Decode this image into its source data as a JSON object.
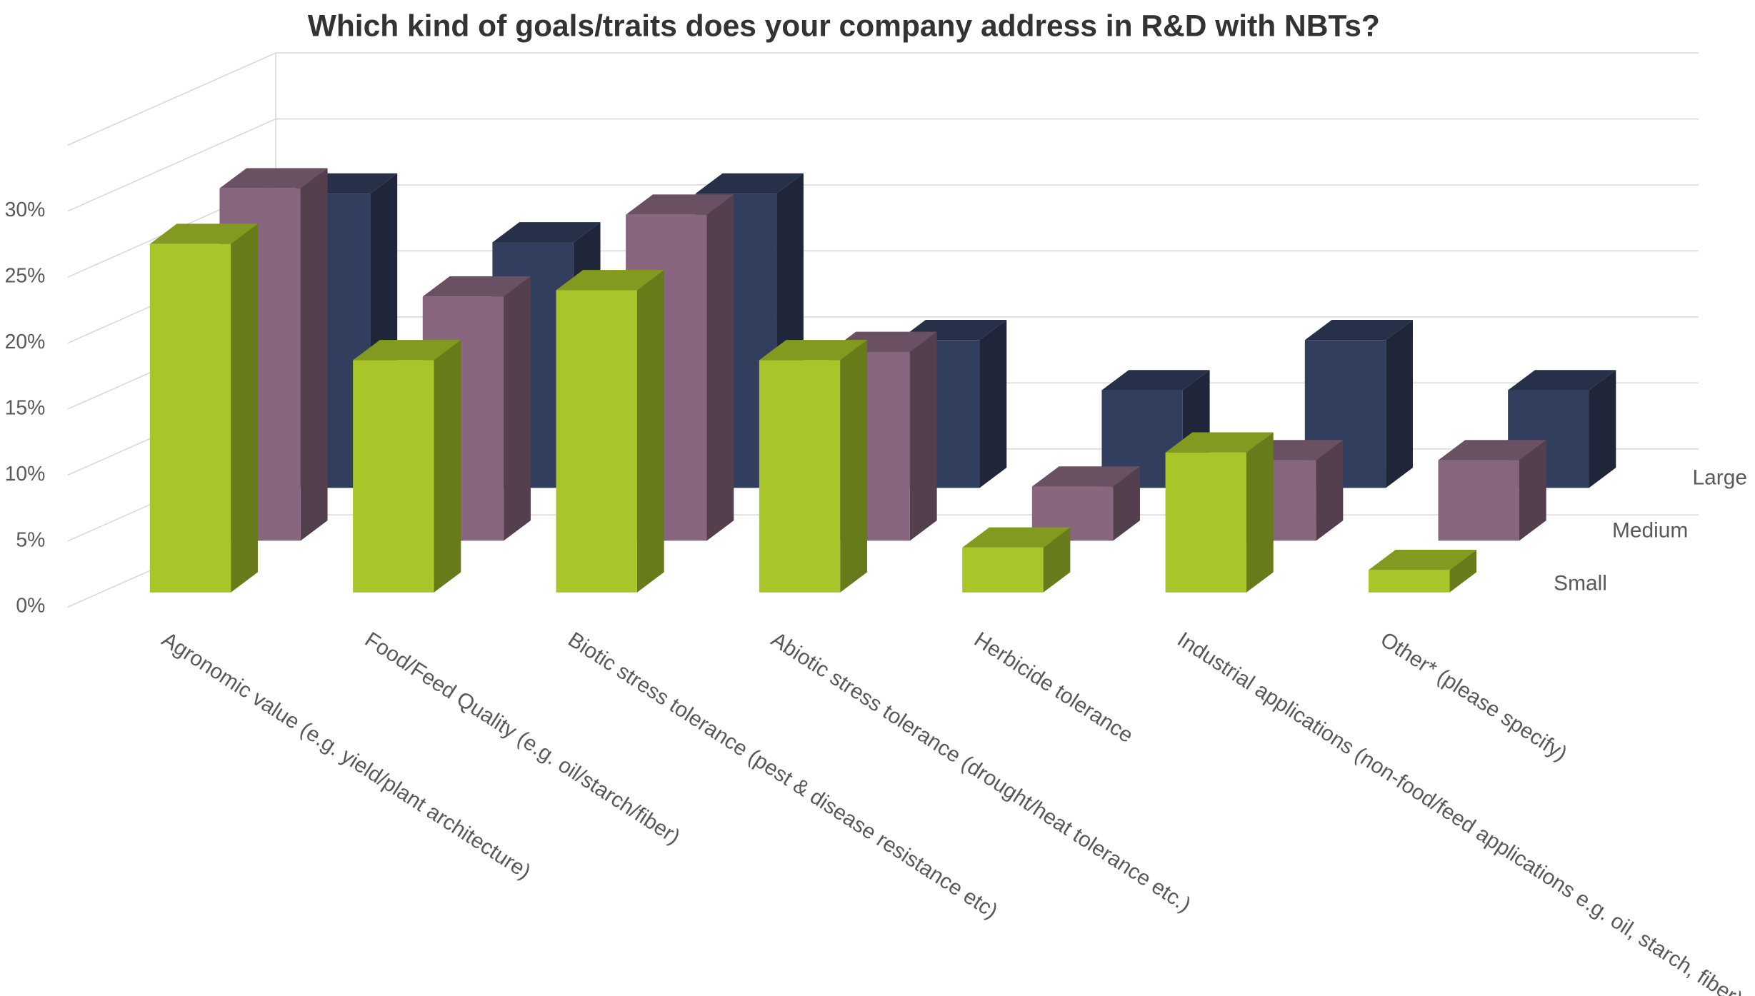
{
  "chart_data": {
    "type": "bar3d",
    "title": "Which kind of goals/traits does your company address in R&D with NBTs?",
    "categories": [
      "Agronomic value (e.g. yield/plant architecture)",
      "Food/Feed Quality (e.g. oil/starch/fiber)",
      "Biotic stress tolerance (pest & disease resistance etc)",
      "Abiotic stress tolerance (drought/heat tolerance etc.)",
      "Herbicide tolerance",
      "Industrial applications (non-food/feed applications e.g. oil, starch, fiber)",
      "Other* (please specify)"
    ],
    "series": [
      {
        "name": "Small",
        "color": "#a8c62a",
        "values": [
          26.4,
          17.6,
          22.9,
          17.6,
          3.4,
          10.6,
          1.7
        ]
      },
      {
        "name": "Medium",
        "color": "#88667f",
        "values": [
          26.7,
          18.5,
          24.7,
          14.3,
          4.1,
          6.1,
          6.1
        ]
      },
      {
        "name": "Large",
        "color": "#323e5e",
        "values": [
          22.3,
          18.6,
          22.3,
          11.2,
          7.4,
          11.2,
          7.4
        ]
      }
    ],
    "ylim": [
      0,
      35
    ],
    "yticks": [
      {
        "value": 0,
        "label": "0%"
      },
      {
        "value": 5,
        "label": "5%"
      },
      {
        "value": 10,
        "label": "10%"
      },
      {
        "value": 15,
        "label": "15%"
      },
      {
        "value": 20,
        "label": "20%"
      },
      {
        "value": 25,
        "label": "25%"
      },
      {
        "value": 30,
        "label": "30%"
      }
    ],
    "grid": true
  }
}
